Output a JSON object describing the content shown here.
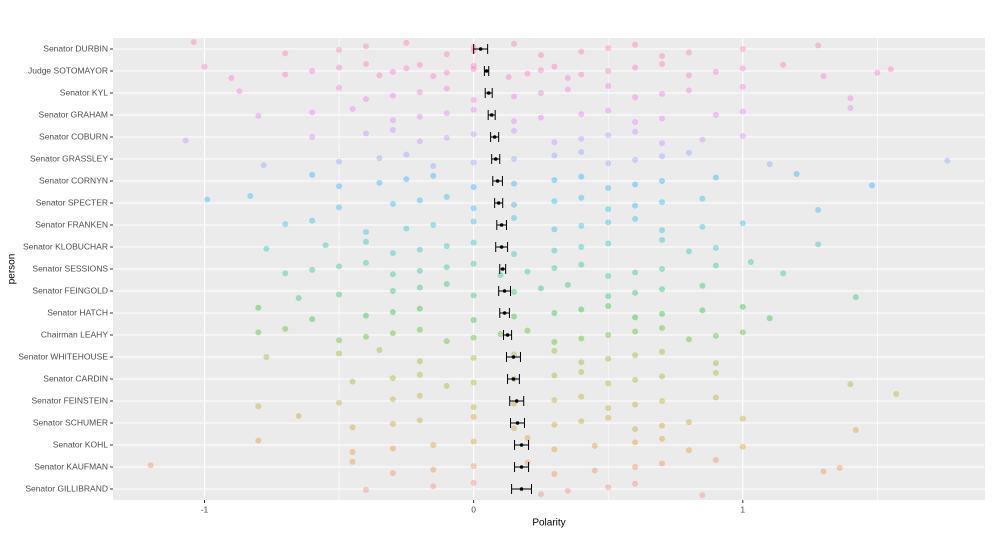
{
  "chart_data": {
    "type": "scatter",
    "x_label": "Polarity",
    "y_label": "person",
    "xlim": [
      -1.34,
      1.9
    ],
    "xticks": [
      -1,
      0,
      1
    ],
    "minor_xticks": [
      -0.5,
      0.5,
      1.5
    ],
    "grid": true,
    "series": [
      {
        "name": "Senator DURBIN",
        "color": "#FF6A9A",
        "mean": 0.026,
        "error": 0.026,
        "values": [
          -1.04,
          -0.7,
          -0.5,
          -0.4,
          -0.25,
          -0.1,
          0,
          0,
          0.15,
          0.25,
          0.4,
          0.5,
          0.6,
          0.7,
          0.8,
          1,
          1.28
        ]
      },
      {
        "name": "Judge SOTOMAYOR",
        "color": "#FF62BF",
        "mean": 0.048,
        "error": 0.008,
        "values": [
          -1.0,
          -0.9,
          -0.7,
          -0.6,
          -0.5,
          -0.4,
          -0.35,
          -0.3,
          -0.25,
          -0.2,
          -0.15,
          -0.1,
          0,
          0,
          0.13,
          0.2,
          0.25,
          0.3,
          0.35,
          0.4,
          0.5,
          0.6,
          0.7,
          0.8,
          0.9,
          1,
          1.15,
          1.3,
          1.5,
          1.55
        ]
      },
      {
        "name": "Senator KYL",
        "color": "#F863DF",
        "mean": 0.056,
        "error": 0.013,
        "values": [
          -0.87,
          -0.5,
          -0.4,
          -0.3,
          -0.2,
          -0.1,
          0,
          0.15,
          0.25,
          0.35,
          0.5,
          0.6,
          0.7,
          0.8,
          1,
          1.4
        ]
      },
      {
        "name": "Senator GRAHAM",
        "color": "#E26EF7",
        "mean": 0.067,
        "error": 0.013,
        "values": [
          -0.8,
          -0.6,
          -0.45,
          -0.3,
          -0.2,
          -0.1,
          0,
          0.15,
          0.25,
          0.4,
          0.5,
          0.6,
          0.7,
          0.9,
          1,
          1.4
        ]
      },
      {
        "name": "Senator COBURN",
        "color": "#BC81FF",
        "mean": 0.078,
        "error": 0.015,
        "values": [
          -1.07,
          -0.6,
          -0.4,
          -0.3,
          -0.2,
          -0.1,
          0,
          0.15,
          0.3,
          0.4,
          0.5,
          0.6,
          0.7,
          0.85,
          1
        ]
      },
      {
        "name": "Senator GRASSLEY",
        "color": "#7F96FF",
        "mean": 0.082,
        "error": 0.015,
        "values": [
          -0.78,
          -0.5,
          -0.35,
          -0.25,
          -0.15,
          0,
          0.15,
          0.3,
          0.4,
          0.5,
          0.6,
          0.7,
          0.8,
          1.1,
          1.76
        ]
      },
      {
        "name": "Senator CORNYN",
        "color": "#00A7FF",
        "mean": 0.089,
        "error": 0.018,
        "values": [
          -0.6,
          -0.5,
          -0.35,
          -0.25,
          -0.15,
          0,
          0.15,
          0.3,
          0.4,
          0.5,
          0.6,
          0.7,
          0.9,
          1.2,
          1.48
        ]
      },
      {
        "name": "Senator SPECTER",
        "color": "#00B5EE",
        "mean": 0.093,
        "error": 0.015,
        "values": [
          -0.99,
          -0.83,
          -0.5,
          -0.3,
          -0.2,
          -0.1,
          0,
          0.15,
          0.3,
          0.4,
          0.5,
          0.6,
          0.7,
          0.85,
          1.28
        ]
      },
      {
        "name": "Senator FRANKEN",
        "color": "#00BDD4",
        "mean": 0.104,
        "error": 0.018,
        "values": [
          -0.7,
          -0.6,
          -0.4,
          -0.25,
          -0.15,
          0,
          0.15,
          0.3,
          0.4,
          0.5,
          0.6,
          0.7,
          0.85,
          1
        ]
      },
      {
        "name": "Senator KLOBUCHAR",
        "color": "#00C1B2",
        "mean": 0.104,
        "error": 0.022,
        "values": [
          -0.77,
          -0.55,
          -0.4,
          -0.3,
          -0.2,
          -0.1,
          0,
          0.15,
          0.3,
          0.4,
          0.5,
          0.7,
          0.8,
          0.9,
          1.28
        ]
      },
      {
        "name": "Senator SESSIONS",
        "color": "#00C08D",
        "mean": 0.108,
        "error": 0.011,
        "values": [
          -0.7,
          -0.6,
          -0.5,
          -0.4,
          -0.3,
          -0.2,
          -0.1,
          0,
          0.1,
          0.2,
          0.3,
          0.4,
          0.5,
          0.6,
          0.7,
          0.9,
          1.03,
          1.15
        ]
      },
      {
        "name": "Senator FEINGOLD",
        "color": "#00BD5C",
        "mean": 0.115,
        "error": 0.022,
        "values": [
          -0.65,
          -0.5,
          -0.3,
          -0.2,
          -0.1,
          0,
          0.15,
          0.25,
          0.35,
          0.5,
          0.6,
          0.7,
          0.85,
          1.42
        ]
      },
      {
        "name": "Senator HATCH",
        "color": "#00B81B",
        "mean": 0.115,
        "error": 0.018,
        "values": [
          -0.8,
          -0.6,
          -0.4,
          -0.3,
          -0.2,
          0,
          0.15,
          0.3,
          0.4,
          0.5,
          0.6,
          0.7,
          0.85,
          1,
          1.1
        ]
      },
      {
        "name": "Chairman LEAHY",
        "color": "#3DB500",
        "mean": 0.126,
        "error": 0.015,
        "values": [
          -0.8,
          -0.7,
          -0.5,
          -0.4,
          -0.3,
          -0.2,
          -0.1,
          0,
          0.1,
          0.2,
          0.3,
          0.4,
          0.5,
          0.6,
          0.7,
          0.8,
          0.9,
          1
        ]
      },
      {
        "name": "Senator WHITEHOUSE",
        "color": "#8FAA00",
        "mean": 0.148,
        "error": 0.026,
        "values": [
          -0.77,
          -0.5,
          -0.35,
          -0.2,
          0,
          0.15,
          0.3,
          0.4,
          0.5,
          0.6,
          0.7,
          0.9
        ]
      },
      {
        "name": "Senator CARDIN",
        "color": "#A3A500",
        "mean": 0.148,
        "error": 0.022,
        "values": [
          -0.45,
          -0.3,
          -0.2,
          -0.1,
          0,
          0.15,
          0.3,
          0.4,
          0.5,
          0.6,
          0.7,
          0.9,
          1.4
        ]
      },
      {
        "name": "Senator FEINSTEIN",
        "color": "#B5A000",
        "mean": 0.16,
        "error": 0.026,
        "values": [
          -0.8,
          -0.5,
          -0.3,
          -0.2,
          0,
          0.15,
          0.3,
          0.4,
          0.5,
          0.6,
          0.7,
          0.9,
          1.57
        ]
      },
      {
        "name": "Senator SCHUMER",
        "color": "#C79800",
        "mean": 0.163,
        "error": 0.026,
        "values": [
          -0.65,
          -0.45,
          -0.3,
          -0.2,
          0,
          0.15,
          0.3,
          0.4,
          0.5,
          0.6,
          0.7,
          0.8,
          1,
          1.42
        ]
      },
      {
        "name": "Senator KOHL",
        "color": "#DB8E00",
        "mean": 0.178,
        "error": 0.026,
        "values": [
          -0.8,
          -0.45,
          -0.3,
          -0.15,
          0,
          0.2,
          0.3,
          0.45,
          0.6,
          0.7,
          0.8,
          1
        ]
      },
      {
        "name": "Senator KAUFMAN",
        "color": "#EC8239",
        "mean": 0.178,
        "error": 0.026,
        "values": [
          -1.2,
          -0.45,
          -0.3,
          -0.15,
          0,
          0.2,
          0.3,
          0.45,
          0.6,
          0.7,
          0.9,
          1.3,
          1.36
        ]
      },
      {
        "name": "Senator GILLIBRAND",
        "color": "#F8766D",
        "mean": 0.178,
        "error": 0.037,
        "values": [
          -0.4,
          -0.15,
          0,
          0.25,
          0.35,
          0.5,
          0.6,
          0.85
        ]
      }
    ]
  }
}
